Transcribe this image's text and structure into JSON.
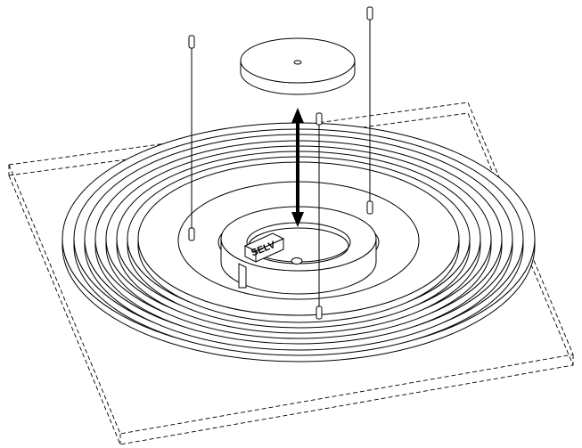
{
  "labels": {
    "connector_block": "SELV"
  },
  "colors": {
    "ink": "#000000",
    "paper": "#ffffff"
  },
  "parts": {
    "rings": "concentric-coil-rings",
    "cap": "top-cap-disc",
    "pins": "connector-pins",
    "arrow": "double-headed-arrow"
  }
}
